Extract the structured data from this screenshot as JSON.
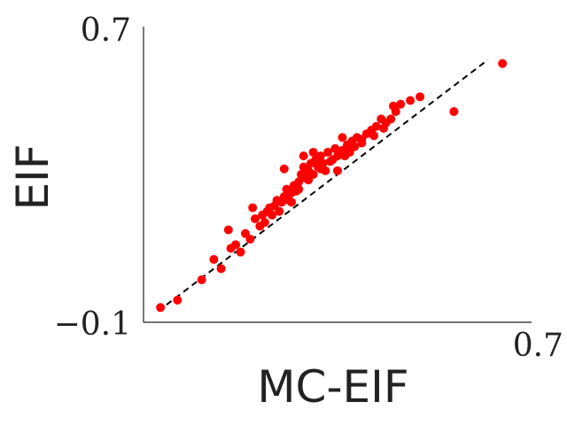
{
  "chart_data": {
    "type": "scatter",
    "xlabel": "MC-EIF",
    "ylabel": "EIF",
    "xlim": [
      -0.1,
      0.7
    ],
    "ylim": [
      -0.1,
      0.7
    ],
    "x_ticks": [
      {
        "value": 0.7,
        "label": "0.7"
      }
    ],
    "y_ticks": [
      {
        "value": -0.1,
        "label": "−0.1"
      },
      {
        "value": 0.7,
        "label": "0.7"
      }
    ],
    "grid": false,
    "colors": {
      "points": "#ff0000",
      "reference_line": "#000000",
      "axes": "#222222"
    },
    "reference_line": {
      "style": "dashed",
      "x": [
        -0.07,
        0.61
      ],
      "y": [
        -0.07,
        0.61
      ]
    },
    "series": [
      {
        "points": [
          [
            -0.065,
            -0.06
          ],
          [
            -0.03,
            -0.04
          ],
          [
            0.02,
            0.015
          ],
          [
            0.045,
            0.07
          ],
          [
            0.06,
            0.045
          ],
          [
            0.08,
            0.1
          ],
          [
            0.075,
            0.15
          ],
          [
            0.09,
            0.11
          ],
          [
            0.1,
            0.09
          ],
          [
            0.11,
            0.14
          ],
          [
            0.12,
            0.125
          ],
          [
            0.125,
            0.21
          ],
          [
            0.13,
            0.18
          ],
          [
            0.14,
            0.16
          ],
          [
            0.145,
            0.19
          ],
          [
            0.15,
            0.17
          ],
          [
            0.155,
            0.2
          ],
          [
            0.16,
            0.21
          ],
          [
            0.165,
            0.19
          ],
          [
            0.17,
            0.215
          ],
          [
            0.175,
            0.23
          ],
          [
            0.18,
            0.2
          ],
          [
            0.185,
            0.225
          ],
          [
            0.19,
            0.24
          ],
          [
            0.195,
            0.26
          ],
          [
            0.2,
            0.23
          ],
          [
            0.205,
            0.25
          ],
          [
            0.21,
            0.27
          ],
          [
            0.215,
            0.255
          ],
          [
            0.22,
            0.28
          ],
          [
            0.225,
            0.3
          ],
          [
            0.23,
            0.32
          ],
          [
            0.235,
            0.29
          ],
          [
            0.24,
            0.31
          ],
          [
            0.245,
            0.33
          ],
          [
            0.25,
            0.3
          ],
          [
            0.255,
            0.34
          ],
          [
            0.26,
            0.32
          ],
          [
            0.265,
            0.35
          ],
          [
            0.27,
            0.33
          ],
          [
            0.275,
            0.31
          ],
          [
            0.28,
            0.36
          ],
          [
            0.29,
            0.34
          ],
          [
            0.295,
            0.37
          ],
          [
            0.3,
            0.35
          ],
          [
            0.31,
            0.365
          ],
          [
            0.32,
            0.38
          ],
          [
            0.325,
            0.36
          ],
          [
            0.33,
            0.39
          ],
          [
            0.34,
            0.4
          ],
          [
            0.35,
            0.385
          ],
          [
            0.36,
            0.41
          ],
          [
            0.37,
            0.42
          ],
          [
            0.38,
            0.43
          ],
          [
            0.39,
            0.45
          ],
          [
            0.4,
            0.44
          ],
          [
            0.42,
            0.47
          ],
          [
            0.43,
            0.49
          ],
          [
            0.45,
            0.5
          ],
          [
            0.47,
            0.51
          ],
          [
            0.19,
            0.315
          ],
          [
            0.23,
            0.35
          ],
          [
            0.25,
            0.36
          ],
          [
            0.3,
            0.31
          ],
          [
            0.31,
            0.4
          ],
          [
            0.205,
            0.225
          ],
          [
            0.22,
            0.26
          ],
          [
            0.24,
            0.285
          ],
          [
            0.265,
            0.315
          ],
          [
            0.285,
            0.335
          ],
          [
            0.315,
            0.35
          ],
          [
            0.335,
            0.375
          ],
          [
            0.35,
            0.395
          ],
          [
            0.375,
            0.405
          ],
          [
            0.395,
            0.425
          ],
          [
            0.41,
            0.45
          ],
          [
            0.415,
            0.485
          ],
          [
            0.54,
            0.47
          ],
          [
            0.64,
            0.6
          ]
        ]
      }
    ]
  }
}
